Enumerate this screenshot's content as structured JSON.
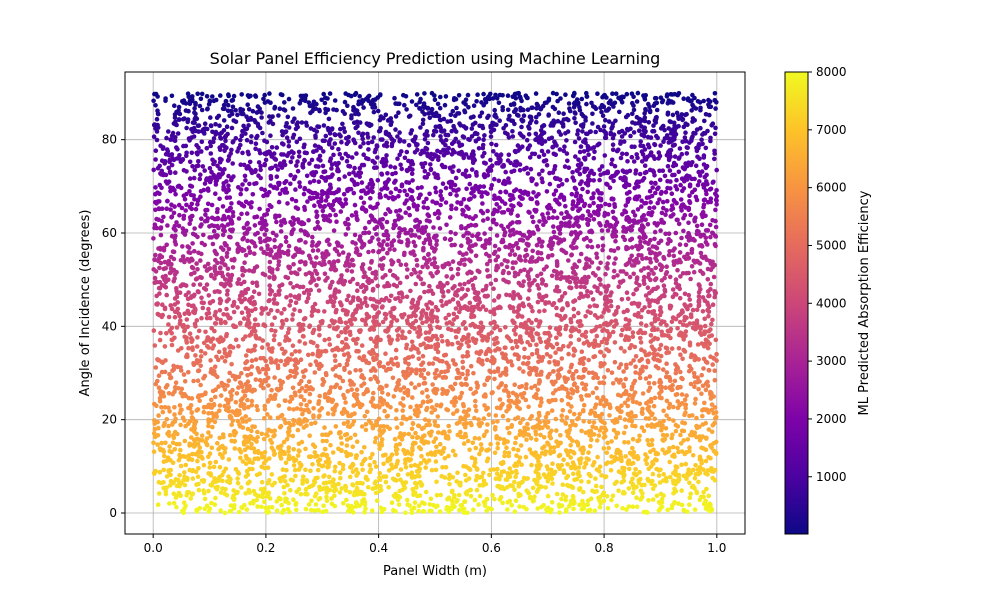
{
  "chart_data": {
    "type": "scatter",
    "title": "Solar Panel Efficiency Prediction using Machine Learning",
    "xlabel": "Panel Width (m)",
    "ylabel": "Angle of Incidence (degrees)",
    "xlim": [
      -0.05,
      1.05
    ],
    "ylim": [
      -4.5,
      94.5
    ],
    "x_ticks": [
      0.0,
      0.2,
      0.4,
      0.6,
      0.8,
      1.0
    ],
    "x_tick_labels": [
      "0.0",
      "0.2",
      "0.4",
      "0.6",
      "0.8",
      "1.0"
    ],
    "y_ticks": [
      0,
      20,
      40,
      60,
      80
    ],
    "y_tick_labels": [
      "0",
      "20",
      "40",
      "60",
      "80"
    ],
    "grid": true,
    "colormap": "plasma",
    "colorbar": {
      "label": "ML Predicted Absorption Efficiency",
      "range": [
        10,
        8000
      ],
      "ticks": [
        1000,
        2000,
        3000,
        4000,
        5000,
        6000,
        7000,
        8000
      ],
      "tick_labels": [
        "1000",
        "2000",
        "3000",
        "4000",
        "5000",
        "6000",
        "7000",
        "8000"
      ]
    },
    "series": [
      {
        "point_count": 8000,
        "x_range": [
          0.0,
          1.0
        ],
        "y_range": [
          0,
          90
        ],
        "relation": "efficiency increases as angle of incidence decreases (approx. 8000 * (1 - angle/90))"
      }
    ]
  }
}
